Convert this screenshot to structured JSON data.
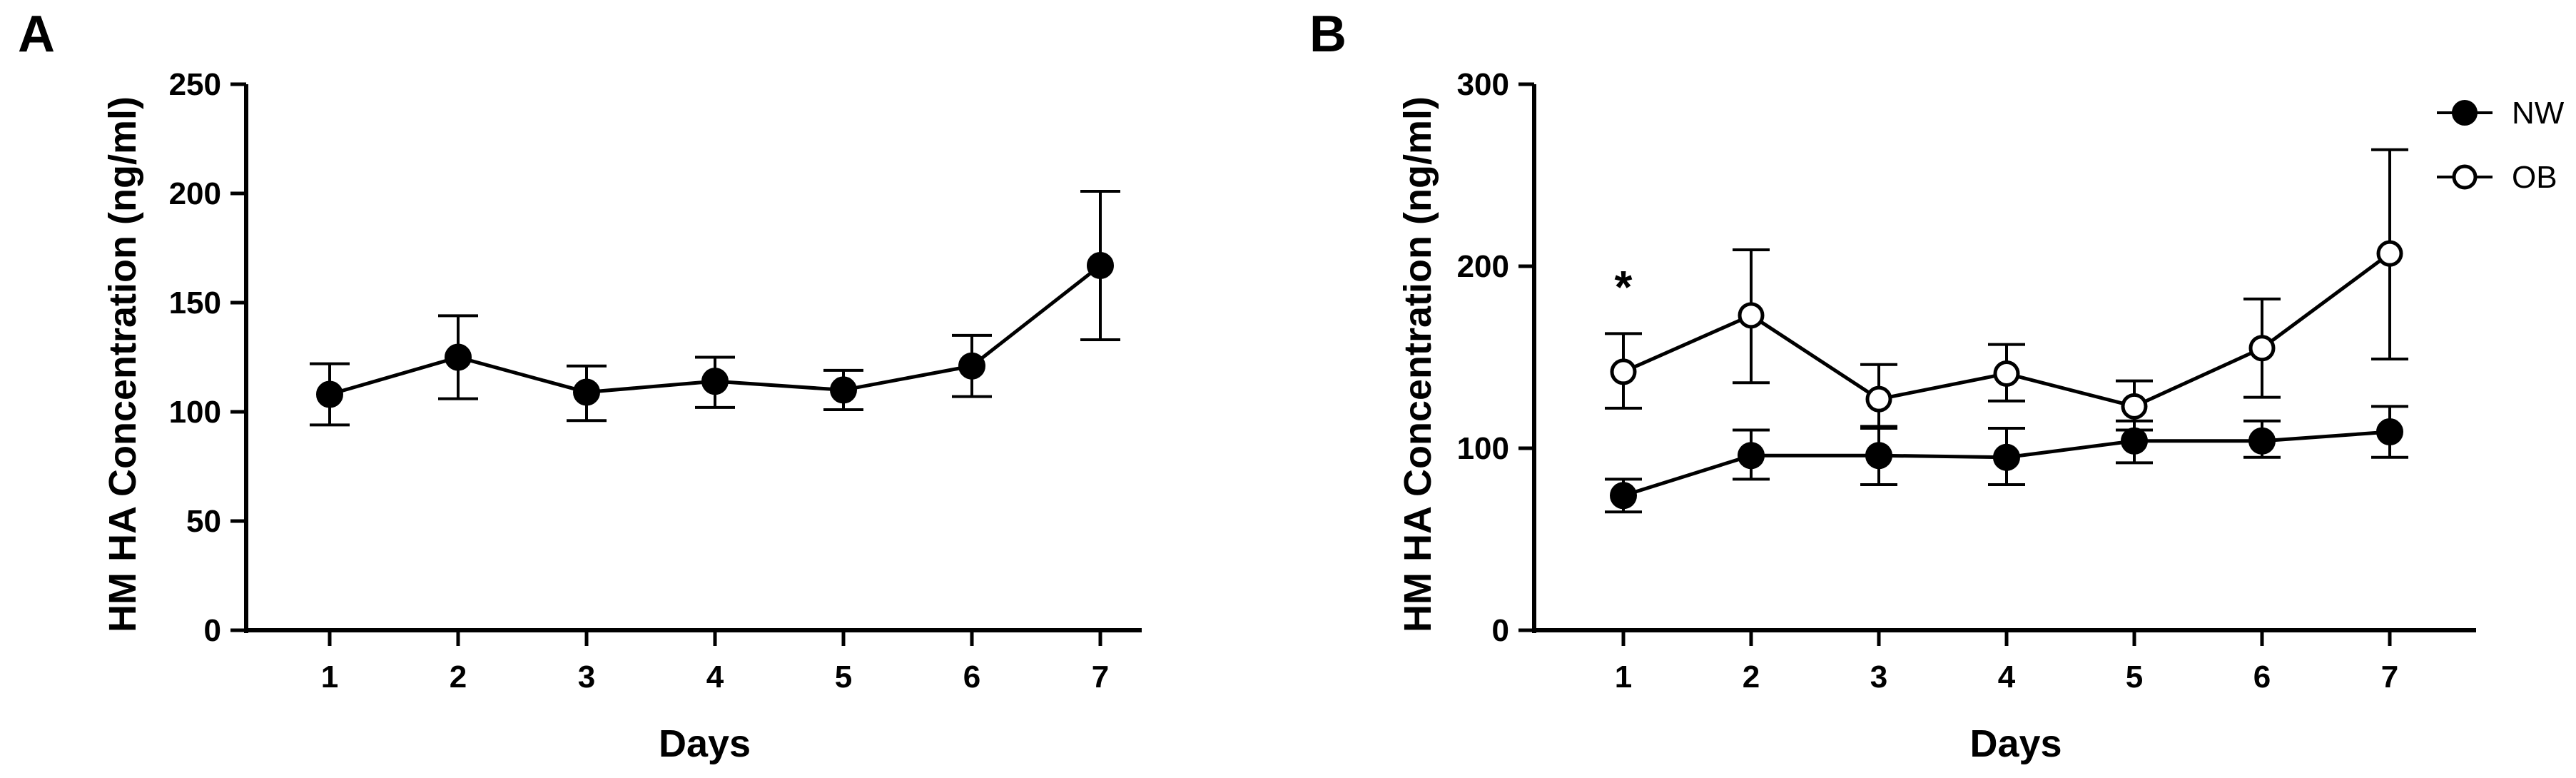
{
  "chart_data": [
    {
      "panel": "A",
      "type": "line",
      "xlabel": "Days",
      "ylabel": "HM HA Concentration (ng/ml)",
      "categories": [
        "1",
        "2",
        "3",
        "4",
        "5",
        "6",
        "7"
      ],
      "ylim": [
        0,
        250
      ],
      "yticks": [
        0,
        50,
        100,
        150,
        200,
        250
      ],
      "series": [
        {
          "name": "",
          "marker": "filled",
          "values": [
            108,
            125,
            109,
            114,
            110,
            121,
            167
          ],
          "error_low": [
            94,
            106,
            96,
            102,
            101,
            107,
            133
          ],
          "error_high": [
            122,
            144,
            121,
            125,
            119,
            135,
            201
          ]
        }
      ]
    },
    {
      "panel": "B",
      "type": "line",
      "xlabel": "Days",
      "ylabel": "HM HA Concentration (ng/ml)",
      "categories": [
        "1",
        "2",
        "3",
        "4",
        "5",
        "6",
        "7"
      ],
      "ylim": [
        0,
        300
      ],
      "yticks": [
        0,
        100,
        200,
        300
      ],
      "legend_position": "top-right",
      "annotations": [
        {
          "text": "*",
          "category": "1",
          "y": 195
        }
      ],
      "series": [
        {
          "name": "NW",
          "marker": "filled",
          "values": [
            74,
            96,
            96,
            95,
            104,
            104,
            109
          ],
          "error_low": [
            65,
            83,
            80,
            80,
            92,
            95,
            95
          ],
          "error_high": [
            83,
            110,
            111,
            111,
            115,
            115,
            123
          ]
        },
        {
          "name": "OB",
          "marker": "open",
          "values": [
            142,
            173,
            127,
            141,
            123,
            155,
            207
          ],
          "error_low": [
            122,
            136,
            112,
            126,
            110,
            128,
            149
          ],
          "error_high": [
            163,
            209,
            146,
            157,
            137,
            182,
            264
          ]
        }
      ]
    }
  ]
}
